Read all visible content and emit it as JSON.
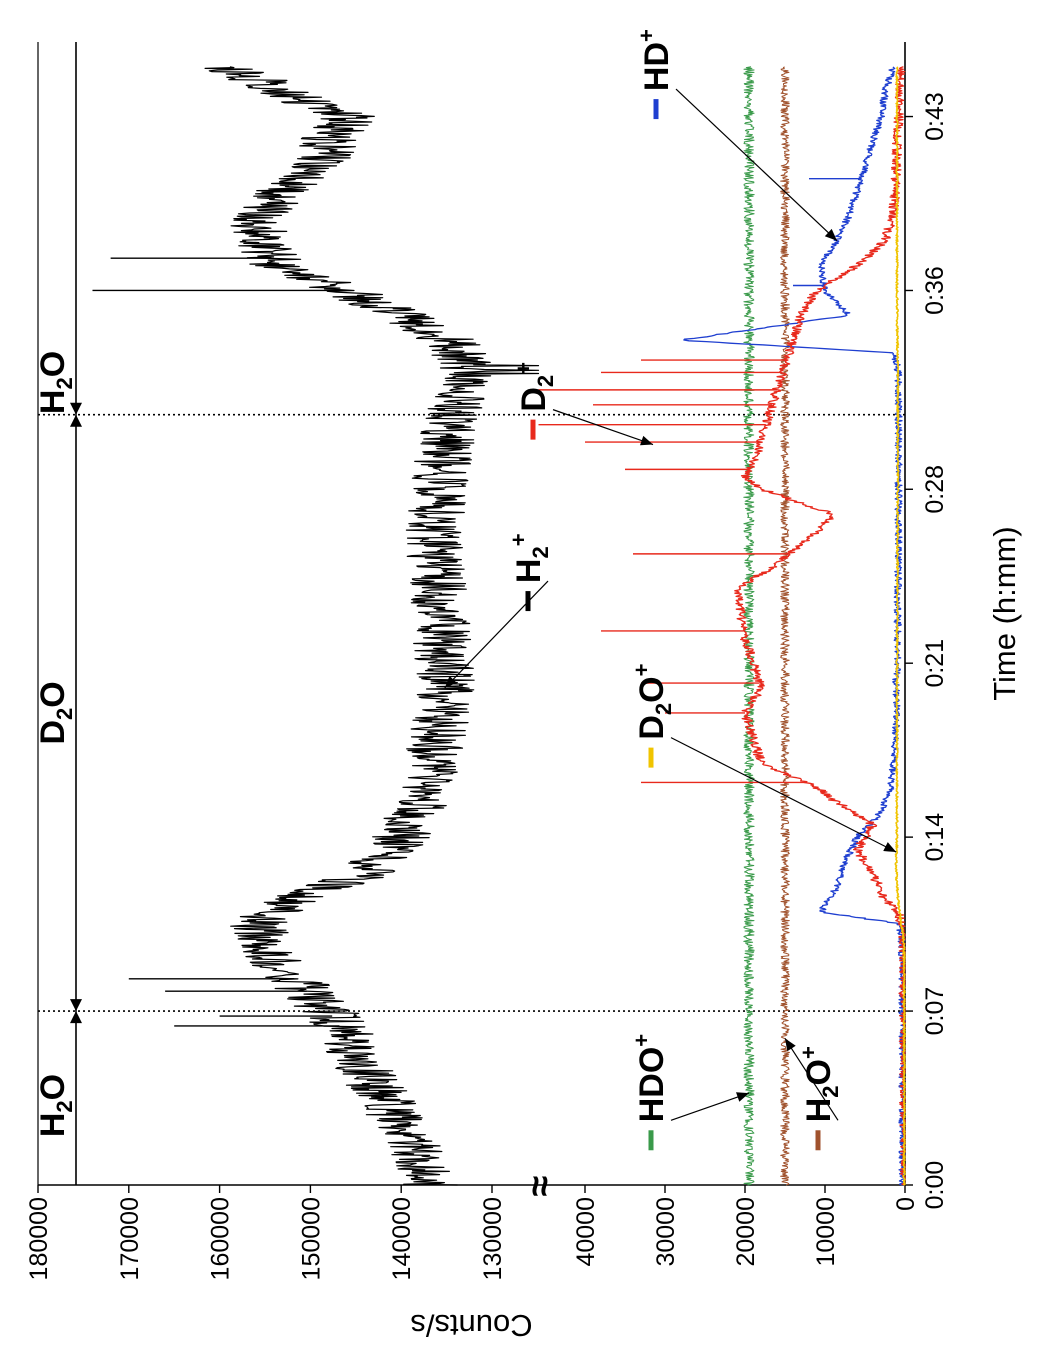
{
  "chart_data": {
    "type": "line",
    "xlabel": "Time (h:mm)",
    "ylabel": "Counts/s",
    "xlim": [
      0,
      46
    ],
    "x_ticks": [
      {
        "value": 0,
        "label": "0:00"
      },
      {
        "value": 7,
        "label": "0:07"
      },
      {
        "value": 14,
        "label": "0:14"
      },
      {
        "value": 21,
        "label": "0:21"
      },
      {
        "value": 28,
        "label": "0:28"
      },
      {
        "value": 36,
        "label": "0:36"
      },
      {
        "value": 43,
        "label": "0:43"
      }
    ],
    "y_axis_break": {
      "lower_range": [
        0,
        40000
      ],
      "upper_range": [
        130000,
        180000
      ],
      "symbol": "≈"
    },
    "y_ticks": [
      {
        "value": 0,
        "label": "0"
      },
      {
        "value": 10000,
        "label": "10000"
      },
      {
        "value": 20000,
        "label": "20000"
      },
      {
        "value": 30000,
        "label": "30000"
      },
      {
        "value": 40000,
        "label": "40000"
      },
      {
        "value": 130000,
        "label": "130000"
      },
      {
        "value": 140000,
        "label": "140000"
      },
      {
        "value": 150000,
        "label": "150000"
      },
      {
        "value": 160000,
        "label": "160000"
      },
      {
        "value": 170000,
        "label": "170000"
      },
      {
        "value": 180000,
        "label": "180000"
      }
    ],
    "phase_boundaries": [
      7,
      31
    ],
    "phases": [
      {
        "base": "H",
        "sub": "2",
        "tail": "O",
        "x_center": 3.2
      },
      {
        "base": "D",
        "sub": "2",
        "tail": "O",
        "x_center": 19
      },
      {
        "base": "H",
        "sub": "2",
        "tail": "O",
        "x_center": 32.3
      }
    ],
    "legend": [
      {
        "base": "H",
        "sub": "2",
        "sup": "+",
        "color": "#000000"
      },
      {
        "base": "D",
        "sub": "2",
        "sup": "+",
        "color": "#e8291c"
      },
      {
        "base": "HD",
        "sub": "",
        "sup": "+",
        "color": "#1f3fd0"
      },
      {
        "base": "D",
        "sub": "2",
        "tail": "O",
        "sup": "+",
        "color": "#f0c400"
      },
      {
        "base": "HDO",
        "sub": "",
        "sup": "+",
        "color": "#3a9a4a"
      },
      {
        "base": "H",
        "sub": "2",
        "tail": "O",
        "sup": "+",
        "color": "#a0522d"
      }
    ],
    "series": [
      {
        "name": "H2+",
        "color": "#000000",
        "x": [
          0,
          2,
          4,
          6,
          7,
          8,
          9.5,
          10.5,
          11.5,
          12.5,
          14,
          16,
          18,
          20,
          22,
          24,
          26,
          28,
          30,
          31,
          32,
          33,
          34,
          35,
          36,
          37,
          38,
          39,
          40,
          41,
          42,
          43,
          44,
          45
        ],
        "y": [
          137000,
          139000,
          143000,
          146000,
          148000,
          151000,
          155000,
          156000,
          152000,
          144000,
          140000,
          137000,
          136000,
          135000,
          135500,
          136000,
          136500,
          136000,
          135000,
          134500,
          133000,
          132500,
          135000,
          140000,
          146000,
          154000,
          155000,
          156000,
          153000,
          149000,
          148000,
          146000,
          153000,
          159000
        ]
      },
      {
        "name": "HDO+",
        "color": "#3a9a4a",
        "x": [
          0,
          45
        ],
        "y": [
          19500,
          19500
        ]
      },
      {
        "name": "H2O+",
        "color": "#a0522d",
        "x": [
          0,
          45
        ],
        "y": [
          15000,
          15000
        ]
      },
      {
        "name": "HD+",
        "color": "#1f3fd0",
        "x": [
          0,
          9,
          10.5,
          11,
          12,
          13,
          14,
          15,
          16,
          17,
          18,
          19,
          20,
          21,
          22,
          24,
          26,
          28,
          30,
          32,
          33,
          33.5,
          34,
          35,
          36,
          37,
          38,
          39,
          40,
          41,
          42,
          43,
          44,
          45
        ],
        "y": [
          300,
          300,
          600,
          10500,
          8500,
          7500,
          6000,
          3000,
          1800,
          1400,
          1200,
          1100,
          1100,
          1000,
          900,
          900,
          800,
          800,
          800,
          800,
          900,
          1500,
          28000,
          7000,
          10000,
          10500,
          8500,
          7000,
          6000,
          5000,
          4000,
          3000,
          2500,
          1500
        ]
      },
      {
        "name": "D2+",
        "color": "#e8291c",
        "x": [
          0,
          10,
          11,
          11.5,
          12.5,
          13.5,
          14.5,
          15.5,
          16,
          17,
          18,
          19,
          20,
          21,
          22,
          23,
          24,
          25,
          26,
          27,
          28,
          28.5,
          29,
          30,
          31,
          32,
          33,
          34,
          35,
          36,
          37,
          38,
          39,
          40,
          42,
          43,
          44,
          45
        ],
        "y": [
          0,
          200,
          800,
          2500,
          4000,
          6000,
          4000,
          9000,
          11000,
          18000,
          19000,
          20000,
          18000,
          19000,
          20000,
          20500,
          21000,
          16000,
          12000,
          9000,
          18000,
          20000,
          19000,
          18000,
          17000,
          16000,
          15000,
          14000,
          13000,
          11000,
          6000,
          2500,
          1500,
          1200,
          1000,
          800,
          700,
          600
        ]
      },
      {
        "name": "D2O+",
        "color": "#f0c400",
        "x": [
          0,
          9,
          10,
          11,
          12,
          13,
          14,
          20,
          28,
          32,
          36,
          40,
          45
        ],
        "y": [
          100,
          100,
          200,
          700,
          1000,
          1100,
          1000,
          1000,
          900,
          900,
          1000,
          1000,
          1000
        ]
      }
    ],
    "spikes": [
      {
        "series": "H2+",
        "x": [
          6.4,
          6.8,
          7.8,
          8.3,
          36.0,
          37.3
        ],
        "y": [
          165000,
          160000,
          166000,
          170000,
          174000,
          172000
        ]
      },
      {
        "series": "D2+",
        "x": [
          16.2,
          19.0,
          20.2,
          22.3,
          25.4,
          28.8,
          29.9,
          30.6,
          31.4,
          32.0,
          32.7,
          33.2
        ],
        "y": [
          33000,
          30000,
          33000,
          38000,
          34000,
          35000,
          40000,
          42000,
          39000,
          42000,
          38000,
          33000
        ]
      },
      {
        "series": "HD+",
        "x": [
          36.2,
          40.5
        ],
        "y": [
          14000,
          12000
        ]
      }
    ],
    "annotations": [
      {
        "base": "H",
        "sub": "2",
        "sup": "+",
        "point_x": 20,
        "point_y": 135200
      },
      {
        "base": "D",
        "sub": "2",
        "sup": "+",
        "point_x": 29.8,
        "point_y": 31500
      },
      {
        "base": "HD",
        "sub": "",
        "sup": "+",
        "point_x": 38.0,
        "point_y": 8500
      },
      {
        "base": "D",
        "sub": "2",
        "tail": "O",
        "sup": "+",
        "point_x": 13.4,
        "point_y": 1100
      },
      {
        "base": "HDO",
        "sub": "",
        "sup": "+",
        "point_x": 3.7,
        "point_y": 19500
      },
      {
        "base": "H",
        "sub": "2",
        "tail": "O",
        "sup": "+",
        "point_x": 5.9,
        "point_y": 15000
      }
    ]
  }
}
